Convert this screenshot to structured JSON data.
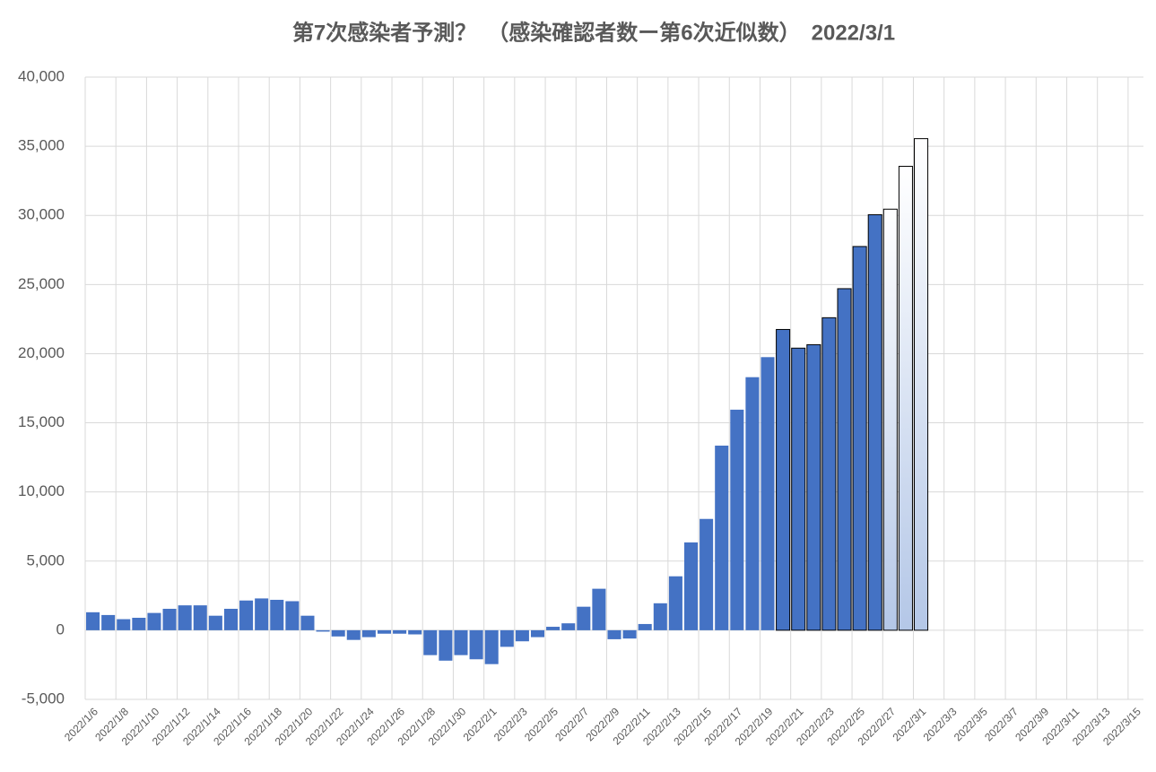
{
  "chart_data": {
    "type": "bar",
    "title": "第7次感染者予測？　（感染確認者数ー第6次近似数）　2022/3/1",
    "categories": [
      "2022/1/6",
      null,
      "2022/1/8",
      null,
      "2022/1/10",
      null,
      "2022/1/12",
      null,
      "2022/1/14",
      null,
      "2022/1/16",
      null,
      "2022/1/18",
      null,
      "2022/1/20",
      null,
      "2022/1/22",
      null,
      "2022/1/24",
      null,
      "2022/1/26",
      null,
      "2022/1/28",
      null,
      "2022/1/30",
      null,
      "2022/2/1",
      null,
      "2022/2/3",
      null,
      "2022/2/5",
      null,
      "2022/2/7",
      null,
      "2022/2/9",
      null,
      "2022/2/11",
      null,
      "2022/2/13",
      null,
      "2022/2/15",
      null,
      "2022/2/17",
      null,
      "2022/2/19",
      null,
      "2022/2/21",
      null,
      "2022/2/23",
      null,
      "2022/2/25",
      null,
      "2022/2/27",
      null,
      "2022/3/1",
      null,
      "2022/3/3",
      null,
      "2022/3/5",
      null,
      "2022/3/7",
      null,
      "2022/3/9",
      null,
      "2022/3/11",
      null,
      "2022/3/13",
      null,
      "2022/3/15"
    ],
    "values": [
      1300,
      1100,
      800,
      900,
      1250,
      1550,
      1800,
      1800,
      1050,
      1550,
      2150,
      2300,
      2200,
      2100,
      1050,
      -100,
      -450,
      -700,
      -500,
      -250,
      -250,
      -300,
      -1800,
      -2200,
      -1800,
      -2100,
      -2450,
      -1200,
      -800,
      -500,
      250,
      500,
      1700,
      3000,
      -650,
      -600,
      450,
      1950,
      3900,
      6350,
      8050,
      13350,
      15950,
      18300,
      19750,
      21750,
      20400,
      20650,
      22600,
      24700,
      27750,
      30050,
      30450,
      33550,
      35550,
      null,
      null,
      null,
      null,
      null,
      null,
      null,
      null,
      null,
      null,
      null,
      null,
      null,
      null
    ],
    "color": "#4472c4",
    "colors": [
      "#4472c4",
      "#4472c4",
      "#4472c4",
      "#4472c4",
      "#4472c4",
      "#4472c4",
      "#4472c4",
      "#4472c4",
      "#4472c4",
      "#4472c4",
      "#4472c4",
      "#4472c4",
      "#4472c4",
      "#4472c4",
      "#4472c4",
      "#4472c4",
      "#4472c4",
      "#4472c4",
      "#4472c4",
      "#4472c4",
      "#4472c4",
      "#4472c4",
      "#4472c4",
      "#4472c4",
      "#4472c4",
      "#4472c4",
      "#4472c4",
      "#4472c4",
      "#4472c4",
      "#4472c4",
      "#4472c4",
      "#4472c4",
      "#4472c4",
      "#4472c4",
      "#4472c4",
      "#4472c4",
      "#4472c4",
      "#4472c4",
      "#4472c4",
      "#4472c4",
      "#4472c4",
      "#4472c4",
      "#4472c4",
      "#4472c4",
      "#4472c4",
      "#4472c4",
      "#4472c4",
      "#4472c4",
      "#4472c4",
      "#4472c4",
      "#4472c4",
      "#4472c4",
      "#b4c7e7",
      "#b4c7e7",
      "#b4c7e7",
      null,
      null,
      null,
      null,
      null,
      null,
      null,
      null,
      null,
      null,
      null,
      null,
      null,
      null
    ],
    "edgecolors": [
      null,
      null,
      null,
      null,
      null,
      null,
      null,
      null,
      null,
      null,
      null,
      null,
      null,
      null,
      null,
      null,
      null,
      null,
      null,
      null,
      null,
      null,
      null,
      null,
      null,
      null,
      null,
      null,
      null,
      null,
      null,
      null,
      null,
      null,
      null,
      null,
      null,
      null,
      null,
      null,
      null,
      null,
      null,
      null,
      null,
      "#000000",
      "#000000",
      "#000000",
      "#000000",
      "#000000",
      "#000000",
      "#000000",
      "#000000",
      "#000000",
      "#000000",
      null,
      null,
      null,
      null,
      null,
      null,
      null,
      null,
      null,
      null,
      null,
      null,
      null,
      null
    ],
    "ylim": [
      -5000,
      40000
    ],
    "yticks": [
      {
        "value": -5000,
        "label": "-5,000"
      },
      0,
      {
        "value": 5000,
        "label": "5,000"
      },
      {
        "value": 10000,
        "label": "10,000"
      },
      {
        "value": 15000,
        "label": "15,000"
      },
      {
        "value": 20000,
        "label": "20,000"
      },
      {
        "value": 25000,
        "label": "25,000"
      },
      {
        "value": 30000,
        "label": "30,000"
      },
      {
        "value": 35000,
        "label": "35,000"
      },
      {
        "value": 40000,
        "label": "40,000"
      }
    ],
    "grid": true
  }
}
